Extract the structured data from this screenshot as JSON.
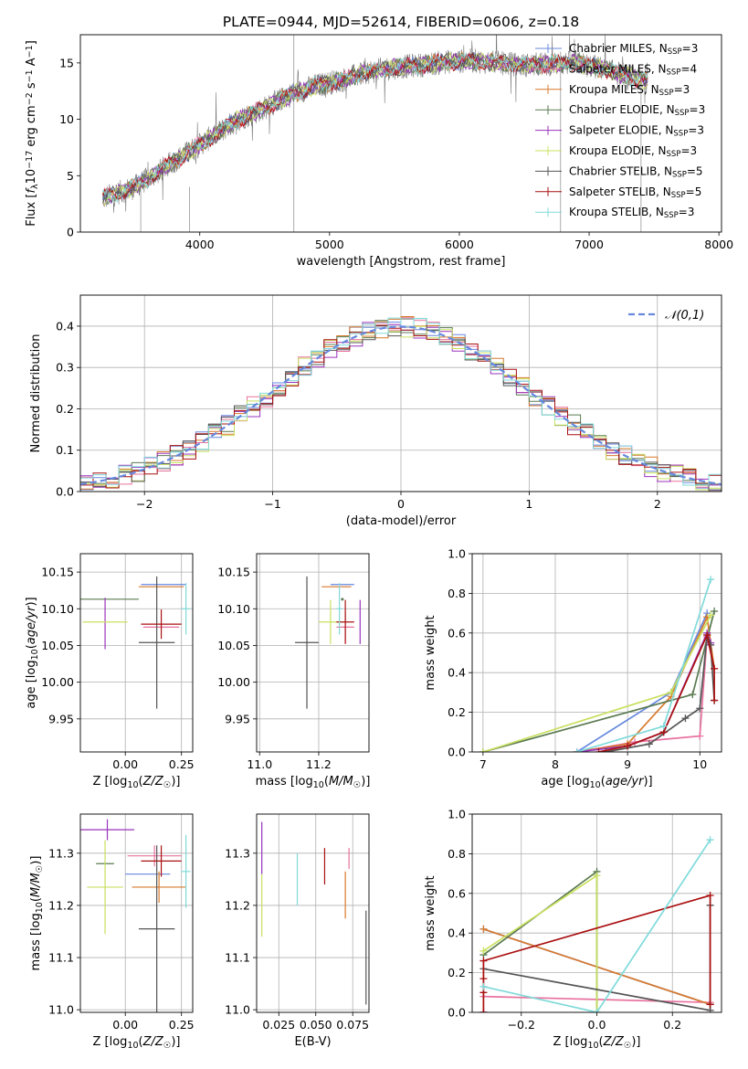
{
  "figure": {
    "title": "PLATE=0944, MJD=52614, FIBERID=0606, z=0.18",
    "sup_ssp": "SSP"
  },
  "colors": {
    "Chabrier MILES": "#6688dd",
    "Salpeter MILES": "#e8729e",
    "Kroupa MILES": "#d8792c",
    "Chabrier ELODIE": "#5a7a50",
    "Salpeter ELODIE": "#9933bb",
    "Kroupa ELODIE": "#c8e060",
    "Chabrier STELIB": "#555555",
    "Salpeter STELIB": "#aa1111",
    "Kroupa STELIB": "#80dada",
    "gaussian": "#6688dd",
    "grid": "#b0b0b0"
  },
  "chart_data": [
    {
      "id": "spectrum",
      "type": "line",
      "xlabel": "wavelength [Angstrom, rest frame]",
      "ylabel": "Flux [f_λ10^-17 erg cm^-2 s^-1 A^-1]",
      "xlim": [
        3080,
        8020
      ],
      "ylim": [
        0,
        17.5
      ],
      "xticks": [
        4000,
        5000,
        6000,
        7000,
        8000
      ],
      "yticks": [
        0,
        5,
        10,
        15
      ],
      "legend": [
        {
          "model": "Chabrier MILES",
          "text": "Chabrier MILES, N",
          "n": "=3"
        },
        {
          "model": "Salpeter MILES",
          "text": "Salpeter MILES, N",
          "n": "=4"
        },
        {
          "model": "Kroupa MILES",
          "text": "Kroupa MILES, N",
          "n": "=3"
        },
        {
          "model": "Chabrier ELODIE",
          "text": "Chabrier ELODIE, N",
          "n": "=3"
        },
        {
          "model": "Salpeter ELODIE",
          "text": "Salpeter ELODIE, N",
          "n": "=3"
        },
        {
          "model": "Kroupa ELODIE",
          "text": "Kroupa ELODIE, N",
          "n": "=3"
        },
        {
          "model": "Chabrier STELIB",
          "text": "Chabrier STELIB, N",
          "n": "=5"
        },
        {
          "model": "Salpeter STELIB",
          "text": "Salpeter STELIB, N",
          "n": "=5"
        },
        {
          "model": "Kroupa STELIB",
          "text": "Kroupa STELIB, N",
          "n": "=3"
        }
      ],
      "continuum": {
        "x": [
          3250,
          3500,
          3700,
          3900,
          4100,
          4300,
          4500,
          4700,
          4900,
          5100,
          5300,
          5500,
          5700,
          5900,
          6100,
          6300,
          6500,
          6700,
          6900,
          7100,
          7400
        ],
        "y": [
          3.0,
          4.0,
          5.5,
          7.0,
          8.5,
          10.0,
          11.0,
          12.2,
          13.0,
          13.5,
          14.2,
          14.6,
          14.8,
          15.1,
          15.2,
          15.0,
          14.8,
          14.9,
          15.0,
          14.5,
          13.5
        ]
      }
    },
    {
      "id": "residuals",
      "type": "histogram",
      "xlabel": "(data-model)/error",
      "ylabel": "Normed distribution",
      "xlim": [
        -2.5,
        2.5
      ],
      "ylim": [
        0,
        0.475
      ],
      "xticks": [
        -2,
        -1,
        0,
        1,
        2
      ],
      "yticks": [
        0.0,
        0.1,
        0.2,
        0.3,
        0.4
      ],
      "bin_width": 0.1,
      "legend": "𝒩(0,1)"
    },
    {
      "id": "age_vs_Z",
      "type": "errorbar",
      "xlabel": "Z [log10(Z/Z☉)]",
      "ylabel": "age [log10(age/yr)]",
      "xlim": [
        -0.2,
        0.3
      ],
      "ylim": [
        9.905,
        10.175
      ],
      "xticks": [
        0.0,
        0.25
      ],
      "yticks": [
        9.95,
        10.0,
        10.05,
        10.1,
        10.15
      ],
      "points": [
        {
          "model": "Chabrier MILES",
          "x": 0.17,
          "y": 10.133,
          "xerr": 0.1,
          "yerr": 0.0
        },
        {
          "model": "Salpeter MILES",
          "x": 0.16,
          "y": 10.075,
          "xerr": 0.08,
          "yerr": 0.0
        },
        {
          "model": "Kroupa MILES",
          "x": 0.16,
          "y": 10.13,
          "xerr": 0.1,
          "yerr": 0.0
        },
        {
          "model": "Chabrier ELODIE",
          "x": -0.08,
          "y": 10.113,
          "xerr": 0.14,
          "yerr": 0.0
        },
        {
          "model": "Salpeter ELODIE",
          "x": -0.09,
          "y": 10.08,
          "xerr": 0.0,
          "yerr": 0.035
        },
        {
          "model": "Kroupa ELODIE",
          "x": -0.09,
          "y": 10.082,
          "xerr": 0.1,
          "yerr": 0.0
        },
        {
          "model": "Chabrier STELIB",
          "x": 0.14,
          "y": 10.054,
          "xerr": 0.08,
          "yerr": 0.09
        },
        {
          "model": "Salpeter STELIB",
          "x": 0.16,
          "y": 10.079,
          "xerr": 0.09,
          "yerr": 0.02
        },
        {
          "model": "Kroupa STELIB",
          "x": 0.27,
          "y": 10.1,
          "xerr": 0.02,
          "yerr": 0.035
        }
      ]
    },
    {
      "id": "age_vs_mass",
      "type": "errorbar",
      "xlabel": "mass [log10(M/M☉)]",
      "ylabel": "",
      "xlim": [
        10.99,
        11.37
      ],
      "ylim": [
        9.905,
        10.175
      ],
      "xticks": [
        11.0,
        11.2
      ],
      "yticks": [
        9.95,
        10.0,
        10.05,
        10.1,
        10.15
      ],
      "points": [
        {
          "model": "Chabrier MILES",
          "x": 11.28,
          "y": 10.133,
          "xerr": 0.04,
          "yerr": 0.0
        },
        {
          "model": "Salpeter MILES",
          "x": 11.29,
          "y": 10.075,
          "xerr": 0.03,
          "yerr": 0.02
        },
        {
          "model": "Kroupa MILES",
          "x": 11.26,
          "y": 10.13,
          "xerr": 0.05,
          "yerr": 0.0
        },
        {
          "model": "Chabrier ELODIE",
          "x": 11.28,
          "y": 10.113,
          "xerr": 0.0,
          "yerr": 0.0
        },
        {
          "model": "Salpeter ELODIE",
          "x": 11.34,
          "y": 10.082,
          "xerr": 0.0,
          "yerr": 0.03
        },
        {
          "model": "Kroupa ELODIE",
          "x": 11.24,
          "y": 10.082,
          "xerr": 0.04,
          "yerr": 0.03
        },
        {
          "model": "Chabrier STELIB",
          "x": 11.16,
          "y": 10.054,
          "xerr": 0.04,
          "yerr": 0.09
        },
        {
          "model": "Salpeter STELIB",
          "x": 11.29,
          "y": 10.082,
          "xerr": 0.03,
          "yerr": 0.03
        },
        {
          "model": "Kroupa STELIB",
          "x": 11.27,
          "y": 10.1,
          "xerr": 0.01,
          "yerr": 0.035
        }
      ]
    },
    {
      "id": "weight_vs_age",
      "type": "line",
      "xlabel": "age [log10(age/yr)]",
      "ylabel": "mass weight",
      "xlim": [
        6.85,
        10.3
      ],
      "ylim": [
        0,
        1.0
      ],
      "xticks": [
        7,
        8,
        9,
        10
      ],
      "yticks": [
        0.0,
        0.2,
        0.4,
        0.6,
        0.8,
        1.0
      ],
      "series": [
        {
          "model": "Chabrier MILES",
          "x": [
            8.3,
            9.6,
            10.1
          ],
          "y": [
            0.0,
            0.3,
            0.7
          ]
        },
        {
          "model": "Salpeter MILES",
          "x": [
            8.3,
            9.1,
            10.0,
            10.1,
            10.2
          ],
          "y": [
            0.0,
            0.05,
            0.08,
            0.58,
            0.42
          ]
        },
        {
          "model": "Kroupa MILES",
          "x": [
            8.3,
            9.0,
            9.6,
            10.1,
            10.2
          ],
          "y": [
            0.0,
            0.04,
            0.28,
            0.68,
            0.42
          ]
        },
        {
          "model": "Chabrier ELODIE",
          "x": [
            7.0,
            9.9,
            10.2
          ],
          "y": [
            0.0,
            0.29,
            0.71
          ]
        },
        {
          "model": "Salpeter ELODIE",
          "x": [
            8.3,
            9.0,
            9.5,
            10.1,
            10.15
          ],
          "y": [
            0.0,
            0.03,
            0.1,
            0.6,
            0.55
          ]
        },
        {
          "model": "Kroupa ELODIE",
          "x": [
            7.0,
            9.6,
            10.15
          ],
          "y": [
            0.0,
            0.3,
            0.69
          ]
        },
        {
          "model": "Chabrier STELIB",
          "x": [
            8.7,
            9.3,
            9.8,
            10.0,
            10.1,
            10.15,
            10.2
          ],
          "y": [
            0.0,
            0.04,
            0.17,
            0.22,
            0.59,
            0.54,
            0.26
          ]
        },
        {
          "model": "Salpeter STELIB",
          "x": [
            8.6,
            9.0,
            9.5,
            10.1,
            10.2,
            10.2
          ],
          "y": [
            0.0,
            0.03,
            0.1,
            0.59,
            0.42,
            0.26
          ]
        },
        {
          "model": "Kroupa STELIB",
          "x": [
            8.3,
            9.5,
            10.15
          ],
          "y": [
            0.0,
            0.13,
            0.87
          ]
        }
      ]
    },
    {
      "id": "mass_vs_Z",
      "type": "errorbar",
      "xlabel": "Z [log10(Z/Z☉)]",
      "ylabel": "mass [log10(M/M☉)]",
      "xlim": [
        -0.2,
        0.3
      ],
      "ylim": [
        10.995,
        11.375
      ],
      "xticks": [
        0.0,
        0.25
      ],
      "yticks": [
        11.0,
        11.1,
        11.2,
        11.3
      ],
      "points": [
        {
          "model": "Chabrier MILES",
          "x": 0.1,
          "y": 11.26,
          "xerr": 0.1,
          "yerr": 0.0
        },
        {
          "model": "Salpeter MILES",
          "x": 0.13,
          "y": 11.295,
          "xerr": 0.12,
          "yerr": 0.02
        },
        {
          "model": "Kroupa MILES",
          "x": 0.15,
          "y": 11.235,
          "xerr": 0.12,
          "yerr": 0.03
        },
        {
          "model": "Chabrier ELODIE",
          "x": -0.09,
          "y": 11.28,
          "xerr": 0.04,
          "yerr": 0.0
        },
        {
          "model": "Salpeter ELODIE",
          "x": -0.08,
          "y": 11.345,
          "xerr": 0.12,
          "yerr": 0.02
        },
        {
          "model": "Kroupa ELODIE",
          "x": -0.09,
          "y": 11.235,
          "xerr": 0.08,
          "yerr": 0.09
        },
        {
          "model": "Chabrier STELIB",
          "x": 0.14,
          "y": 11.155,
          "xerr": 0.08,
          "yerr": 0.16
        },
        {
          "model": "Salpeter STELIB",
          "x": 0.16,
          "y": 11.285,
          "xerr": 0.09,
          "yerr": 0.03
        },
        {
          "model": "Kroupa STELIB",
          "x": 0.27,
          "y": 11.265,
          "xerr": 0.02,
          "yerr": 0.07
        }
      ]
    },
    {
      "id": "mass_vs_EBV",
      "type": "errorbar",
      "xlabel": "E(B-V)",
      "ylabel": "",
      "xlim": [
        0.01,
        0.086
      ],
      "ylim": [
        10.995,
        11.375
      ],
      "xticks": [
        0.025,
        0.05,
        0.075
      ],
      "xticklabels": [
        "0.025",
        "0.050",
        "0.075"
      ],
      "yticks": [
        11.0,
        11.1,
        11.2,
        11.3
      ],
      "points": [
        {
          "model": "Salpeter ELODIE",
          "x": 0.0135,
          "y": 11.31,
          "xerr": 0.0,
          "yerr": 0.05
        },
        {
          "model": "Kroupa ELODIE",
          "x": 0.0135,
          "y": 11.2,
          "xerr": 0.0,
          "yerr": 0.06
        },
        {
          "model": "Kroupa STELIB",
          "x": 0.0375,
          "y": 11.25,
          "xerr": 0.0,
          "yerr": 0.05
        },
        {
          "model": "Salpeter STELIB",
          "x": 0.056,
          "y": 11.275,
          "xerr": 0.0,
          "yerr": 0.035
        },
        {
          "model": "Kroupa MILES",
          "x": 0.07,
          "y": 11.22,
          "xerr": 0.0,
          "yerr": 0.045
        },
        {
          "model": "Salpeter MILES",
          "x": 0.0725,
          "y": 11.29,
          "xerr": 0.0,
          "yerr": 0.02
        },
        {
          "model": "Chabrier STELIB",
          "x": 0.084,
          "y": 11.1,
          "xerr": 0.0,
          "yerr": 0.09
        }
      ]
    },
    {
      "id": "weight_vs_Z",
      "type": "line",
      "xlabel": "Z [log10(Z/Z☉)]",
      "ylabel": "mass weight",
      "xlim": [
        -0.33,
        0.33
      ],
      "ylim": [
        0,
        1.0
      ],
      "xticks": [
        -0.2,
        0.0,
        0.2
      ],
      "yticks": [
        0.0,
        0.2,
        0.4,
        0.6,
        0.8,
        1.0
      ],
      "series": [
        {
          "model": "Chabrier MILES",
          "x": [
            -0.3,
            0.3
          ],
          "y": [
            0.42,
            0.04
          ]
        },
        {
          "model": "Salpeter MILES",
          "x": [
            -0.3,
            0.3
          ],
          "y": [
            0.08,
            0.05
          ]
        },
        {
          "model": "Kroupa MILES",
          "x": [
            -0.3,
            0.3
          ],
          "y": [
            0.42,
            0.04
          ]
        },
        {
          "model": "Chabrier ELODIE",
          "x": [
            -0.3,
            0.0,
            0.0
          ],
          "y": [
            0.29,
            0.71,
            0.0
          ]
        },
        {
          "model": "Salpeter ELODIE",
          "x": [
            -0.3,
            -0.3
          ],
          "y": [
            0.0,
            0.0
          ]
        },
        {
          "model": "Kroupa ELODIE",
          "x": [
            -0.3,
            0.0,
            0.0
          ],
          "y": [
            0.31,
            0.69,
            0.0
          ]
        },
        {
          "model": "Chabrier STELIB",
          "x": [
            -0.3,
            0.3,
            0.3,
            0.3
          ],
          "y": [
            0.22,
            0.01,
            0.04,
            0.54
          ]
        },
        {
          "model": "Salpeter STELIB",
          "x": [
            -0.3,
            -0.3,
            -0.3,
            -0.3,
            0.3,
            0.3
          ],
          "y": [
            0.0,
            0.1,
            0.17,
            0.26,
            0.59,
            0.04
          ]
        },
        {
          "model": "Kroupa STELIB",
          "x": [
            -0.3,
            0.0,
            0.3
          ],
          "y": [
            0.13,
            0.0,
            0.87
          ]
        }
      ]
    }
  ]
}
